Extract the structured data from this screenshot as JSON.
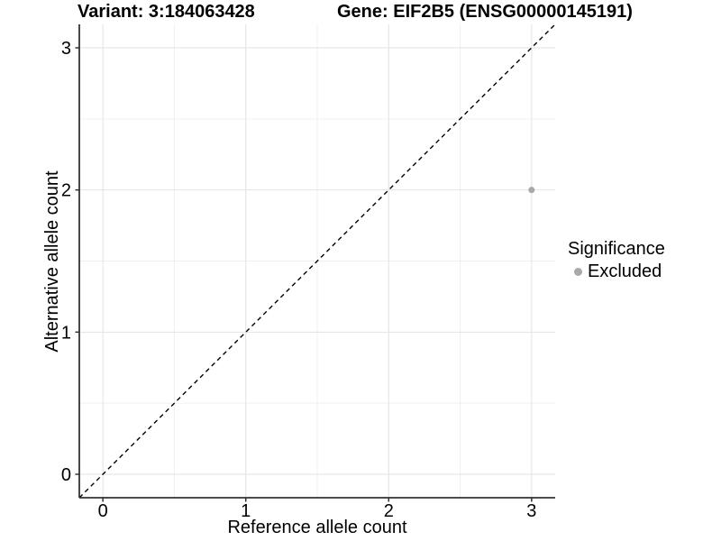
{
  "chart_data": {
    "type": "scatter",
    "titles": {
      "left": "Variant: 3:184063428",
      "right": "Gene: EIF2B5 (ENSG00000145191)"
    },
    "xlabel": "Reference allele count",
    "ylabel": "Alternative allele count",
    "xlim": [
      -0.165,
      3.165
    ],
    "ylim": [
      -0.165,
      3.165
    ],
    "xticks": [
      0,
      1,
      2,
      3
    ],
    "yticks": [
      0,
      1,
      2,
      3
    ],
    "minor_ticks_x": [
      0.5,
      1.5,
      2.5
    ],
    "minor_ticks_y": [
      0.5,
      1.5,
      2.5
    ],
    "grid": "major+minor",
    "legend_position": "right",
    "reference_line": {
      "slope": 1,
      "intercept": 0,
      "style": "dashed",
      "color": "#000000"
    },
    "series": [
      {
        "name": "Excluded",
        "color": "#a9a9a9",
        "points": [
          {
            "x": 3,
            "y": 2
          }
        ]
      }
    ],
    "legend": {
      "title": "Significance",
      "entries": [
        {
          "label": "Excluded",
          "color": "#a9a9a9"
        }
      ]
    },
    "colors": {
      "grid_major": "#e2e2e2",
      "grid_minor": "#f0f0f0",
      "axis": "#333333",
      "text": "#000000",
      "background": "#ffffff"
    }
  }
}
